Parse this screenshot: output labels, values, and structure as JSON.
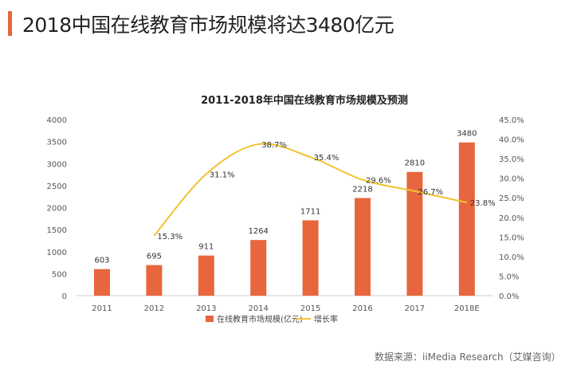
{
  "header": {
    "title": "2018中国在线教育市场规模将达3480亿元"
  },
  "source": "数据来源：iiMedia Research（艾媒咨询）",
  "chart_data": {
    "type": "bar+line",
    "title": "2011-2018年中国在线教育市场规模及预测",
    "categories": [
      "2011",
      "2012",
      "2013",
      "2014",
      "2015",
      "2016",
      "2017",
      "2018E"
    ],
    "series": [
      {
        "name": "在线教育市场规模(亿元)",
        "type": "bar",
        "axis": "left",
        "color": "#e8663d",
        "values": [
          603,
          695,
          911,
          1264,
          1711,
          2218,
          2810,
          3480
        ],
        "labels": [
          "603",
          "695",
          "911",
          "1264",
          "1711",
          "2218",
          "2810",
          "3480"
        ]
      },
      {
        "name": "增长率",
        "type": "line",
        "axis": "right",
        "color": "#f2c230",
        "values": [
          null,
          15.3,
          31.1,
          38.7,
          35.4,
          29.6,
          26.7,
          23.8
        ],
        "labels": [
          "",
          "15.3%",
          "31.1%",
          "38.7%",
          "35.4%",
          "29.6%",
          "26.7%",
          "23.8%"
        ]
      }
    ],
    "left_axis": {
      "ylim": [
        0,
        4000
      ],
      "ticks": [
        "0",
        "500",
        "1000",
        "1500",
        "2000",
        "2500",
        "3000",
        "3500",
        "4000"
      ]
    },
    "right_axis": {
      "ylim": [
        0,
        45
      ],
      "ticks": [
        "0.0%",
        "5.0%",
        "10.0%",
        "15.0%",
        "20.0%",
        "25.0%",
        "30.0%",
        "35.0%",
        "40.0%",
        "45.0%"
      ]
    },
    "grid": false,
    "legend": "bottom"
  }
}
